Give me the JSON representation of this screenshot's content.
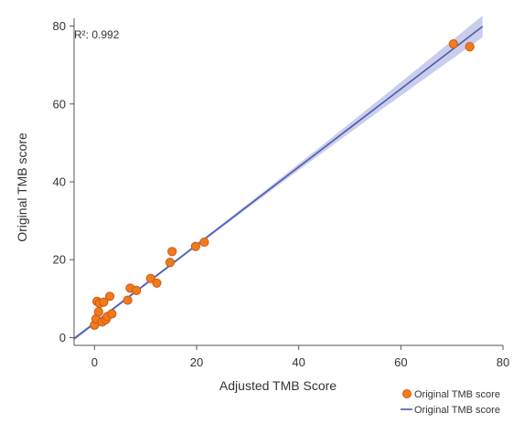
{
  "chart_data": {
    "type": "scatter",
    "xlabel": "Adjusted TMB Score",
    "ylabel": "Original TMB score",
    "xlim": [
      -4,
      80
    ],
    "ylim": [
      -2,
      82
    ],
    "xticks": [
      0,
      20,
      40,
      60,
      80
    ],
    "yticks": [
      0,
      20,
      40,
      60,
      80
    ],
    "annotation": "R²: 0.992",
    "grid": false,
    "legend_position": "bottom-right",
    "legend": [
      {
        "label": "Original TMB score",
        "kind": "marker"
      },
      {
        "label": "Original TMB score",
        "kind": "line"
      }
    ],
    "colors": {
      "points": "#F07A1E",
      "point_edge": "#D05A10",
      "line": "#4A5AAE",
      "band": "#B8BEE6"
    },
    "series": [
      {
        "kind": "scatter",
        "x": [
          0.0,
          0.3,
          0.5,
          0.8,
          1.0,
          1.5,
          1.8,
          2.2,
          2.5,
          3.0,
          3.4,
          6.5,
          7.0,
          8.2,
          11.0,
          12.2,
          14.8,
          15.2,
          19.8,
          21.5,
          70.3,
          73.5
        ],
        "y": [
          3.2,
          4.8,
          9.3,
          6.6,
          8.8,
          4.0,
          9.1,
          4.6,
          5.4,
          10.6,
          6.1,
          9.6,
          12.7,
          12.1,
          15.2,
          14.0,
          19.3,
          22.1,
          23.4,
          24.5,
          75.4,
          74.7
        ]
      },
      {
        "kind": "fit_line",
        "x": [
          -4,
          76
        ],
        "y": [
          -0.3,
          79.9
        ]
      }
    ]
  }
}
